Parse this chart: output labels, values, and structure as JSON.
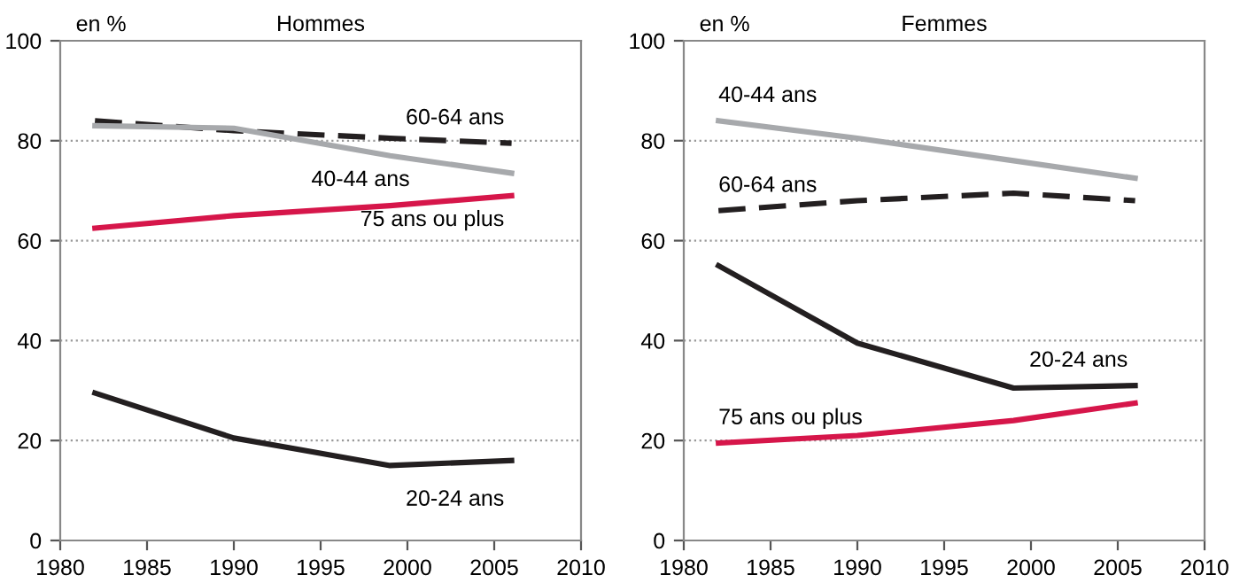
{
  "chart_data": [
    {
      "type": "line",
      "title": "Hommes",
      "ylabel": "en %",
      "x": [
        1982,
        1990,
        1999,
        2006
      ],
      "xlim": [
        1980,
        2010
      ],
      "xticks": [
        1980,
        1985,
        1990,
        1995,
        2000,
        2005,
        2010
      ],
      "ylim": [
        0,
        100
      ],
      "yticks": [
        0,
        20,
        40,
        60,
        80,
        100
      ],
      "grid": "y",
      "legend": false,
      "marker": "none",
      "series": [
        {
          "name": "60-64 ans",
          "color": "#231f20",
          "line_style": "dashed",
          "values": [
            84,
            82,
            80.5,
            79.5
          ]
        },
        {
          "name": "40-44 ans",
          "color": "#a7a9ac",
          "line_style": "solid",
          "values": [
            83,
            82.5,
            77,
            73.5
          ]
        },
        {
          "name": "75 ans ou plus",
          "color": "#d6164a",
          "line_style": "solid",
          "values": [
            62.5,
            65,
            67,
            69
          ]
        },
        {
          "name": "20-24 ans",
          "color": "#231f20",
          "line_style": "solid",
          "values": [
            29.5,
            20.5,
            15,
            16
          ]
        }
      ]
    },
    {
      "type": "line",
      "title": "Femmes",
      "ylabel": "en %",
      "x": [
        1982,
        1990,
        1999,
        2006
      ],
      "xlim": [
        1980,
        2010
      ],
      "xticks": [
        1980,
        1985,
        1990,
        1995,
        2000,
        2005,
        2010
      ],
      "ylim": [
        0,
        100
      ],
      "yticks": [
        0,
        20,
        40,
        60,
        80,
        100
      ],
      "grid": "y",
      "legend": false,
      "marker": "none",
      "series": [
        {
          "name": "40-44 ans",
          "color": "#a7a9ac",
          "line_style": "solid",
          "values": [
            84,
            80.5,
            76,
            72.5
          ]
        },
        {
          "name": "60-64 ans",
          "color": "#231f20",
          "line_style": "dashed",
          "values": [
            66,
            68,
            69.5,
            68
          ]
        },
        {
          "name": "20-24 ans",
          "color": "#231f20",
          "line_style": "solid",
          "values": [
            55,
            39.5,
            30.5,
            31
          ]
        },
        {
          "name": "75 ans ou plus",
          "color": "#d6164a",
          "line_style": "solid",
          "values": [
            19.5,
            21,
            24,
            27.5
          ]
        }
      ]
    }
  ]
}
